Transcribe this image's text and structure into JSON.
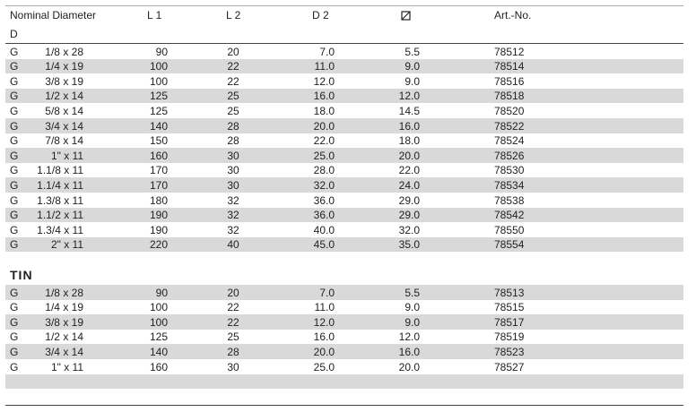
{
  "header": {
    "columns": [
      "Nominal Diameter",
      "L 1",
      "L 2",
      "D 2",
      "Art.-No."
    ],
    "sub": "D"
  },
  "sections": [
    {
      "rows": [
        [
          "G",
          "1/8 x 28",
          "90",
          "20",
          "7.0",
          "5.5",
          "78512"
        ],
        [
          "G",
          "1/4 x 19",
          "100",
          "22",
          "11.0",
          "9.0",
          "78514"
        ],
        [
          "G",
          "3/8 x 19",
          "100",
          "22",
          "12.0",
          "9.0",
          "78516"
        ],
        [
          "G",
          "1/2 x 14",
          "125",
          "25",
          "16.0",
          "12.0",
          "78518"
        ],
        [
          "G",
          "5/8 x 14",
          "125",
          "25",
          "18.0",
          "14.5",
          "78520"
        ],
        [
          "G",
          "3/4 x 14",
          "140",
          "28",
          "20.0",
          "16.0",
          "78522"
        ],
        [
          "G",
          "7/8 x 14",
          "150",
          "28",
          "22.0",
          "18.0",
          "78524"
        ],
        [
          "G",
          "1\" x 11",
          "160",
          "30",
          "25.0",
          "20.0",
          "78526"
        ],
        [
          "G",
          "1.1/8 x 11",
          "170",
          "30",
          "28.0",
          "22.0",
          "78530"
        ],
        [
          "G",
          "1.1/4 x 11",
          "170",
          "30",
          "32.0",
          "24.0",
          "78534"
        ],
        [
          "G",
          "1.3/8 x 11",
          "180",
          "32",
          "36.0",
          "29.0",
          "78538"
        ],
        [
          "G",
          "1.1/2 x 11",
          "190",
          "32",
          "36.0",
          "29.0",
          "78542"
        ],
        [
          "G",
          "1.3/4 x 11",
          "190",
          "32",
          "40.0",
          "32.0",
          "78550"
        ],
        [
          "G",
          "2\" x 11",
          "220",
          "40",
          "45.0",
          "35.0",
          "78554"
        ]
      ]
    },
    {
      "title": "TIN",
      "rows": [
        [
          "G",
          "1/8 x 28",
          "90",
          "20",
          "7.0",
          "5.5",
          "78513"
        ],
        [
          "G",
          "1/4 x 19",
          "100",
          "22",
          "11.0",
          "9.0",
          "78515"
        ],
        [
          "G",
          "3/8 x 19",
          "100",
          "22",
          "12.0",
          "9.0",
          "78517"
        ],
        [
          "G",
          "1/2 x 14",
          "125",
          "25",
          "16.0",
          "12.0",
          "78519"
        ],
        [
          "G",
          "3/4 x 14",
          "140",
          "28",
          "20.0",
          "16.0",
          "78523"
        ],
        [
          "G",
          "1\" x 11",
          "160",
          "30",
          "25.0",
          "20.0",
          "78527"
        ]
      ]
    }
  ]
}
